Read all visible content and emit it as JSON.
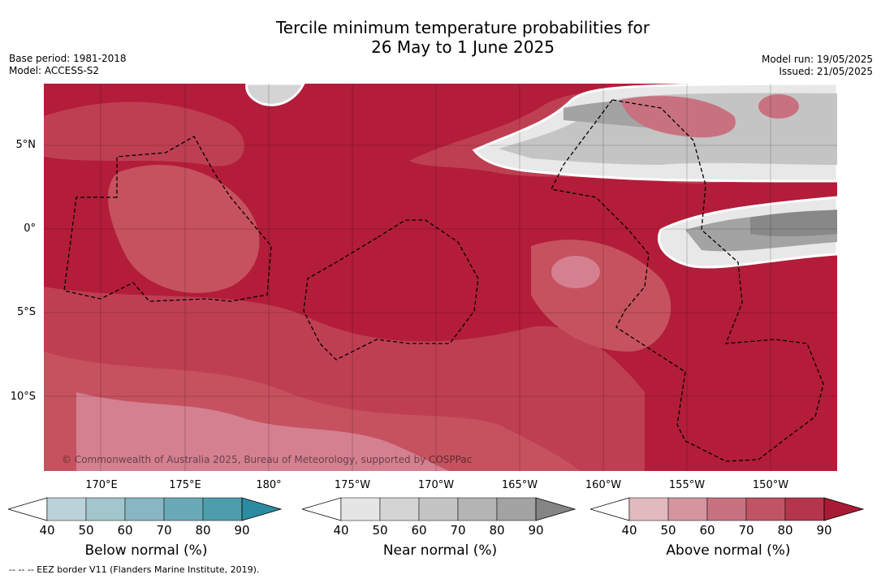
{
  "title_line1": "Tercile minimum temperature probabilities for",
  "title_line2": "26 May to 1 June 2025",
  "base_period": "Base period: 1981-2018",
  "model": "Model: ACCESS-S2",
  "model_run": "Model run: 19/05/2025",
  "issued": "Issued: 21/05/2025",
  "copyright": "© Commonwealth of Australia 2025, Bureau of Meteorology, supported by COSPPac",
  "footnote": "-- -- -- EEZ border V11 (Flanders Marine Institute, 2019).",
  "lat_labels": [
    "5°N",
    "0°",
    "5°S",
    "10°S"
  ],
  "lon_labels": [
    "170°E",
    "175°E",
    "180°",
    "175°W",
    "170°W",
    "165°W",
    "160°W",
    "155°W",
    "150°W"
  ],
  "colorbars": [
    {
      "title": "Below normal (%)",
      "ticks": [
        "40",
        "50",
        "60",
        "70",
        "80",
        "90"
      ],
      "colors": [
        "#ffffff",
        "#bcd2d9",
        "#a3c6cd",
        "#88b6c1",
        "#6aa9b7",
        "#4e9dad",
        "#2b8ca1"
      ]
    },
    {
      "title": "Near normal (%)",
      "ticks": [
        "40",
        "50",
        "60",
        "70",
        "80",
        "90"
      ],
      "colors": [
        "#ffffff",
        "#e5e5e5",
        "#d4d4d4",
        "#c4c4c4",
        "#b4b4b4",
        "#a3a3a3",
        "#858585"
      ]
    },
    {
      "title": "Above normal (%)",
      "ticks": [
        "40",
        "50",
        "60",
        "70",
        "80",
        "90"
      ],
      "colors": [
        "#ffffff",
        "#e2b9bf",
        "#d4959f",
        "#c8727f",
        "#c05463",
        "#b5354a",
        "#a81a33"
      ]
    }
  ],
  "map_colors": {
    "above_80": "#b31d3a",
    "above_70": "#bf3f52",
    "above_60": "#c6525f",
    "above_50": "#d48090",
    "near_60": "#c4c4c4",
    "near_70": "#a3a3a3",
    "near_80": "#888888"
  }
}
